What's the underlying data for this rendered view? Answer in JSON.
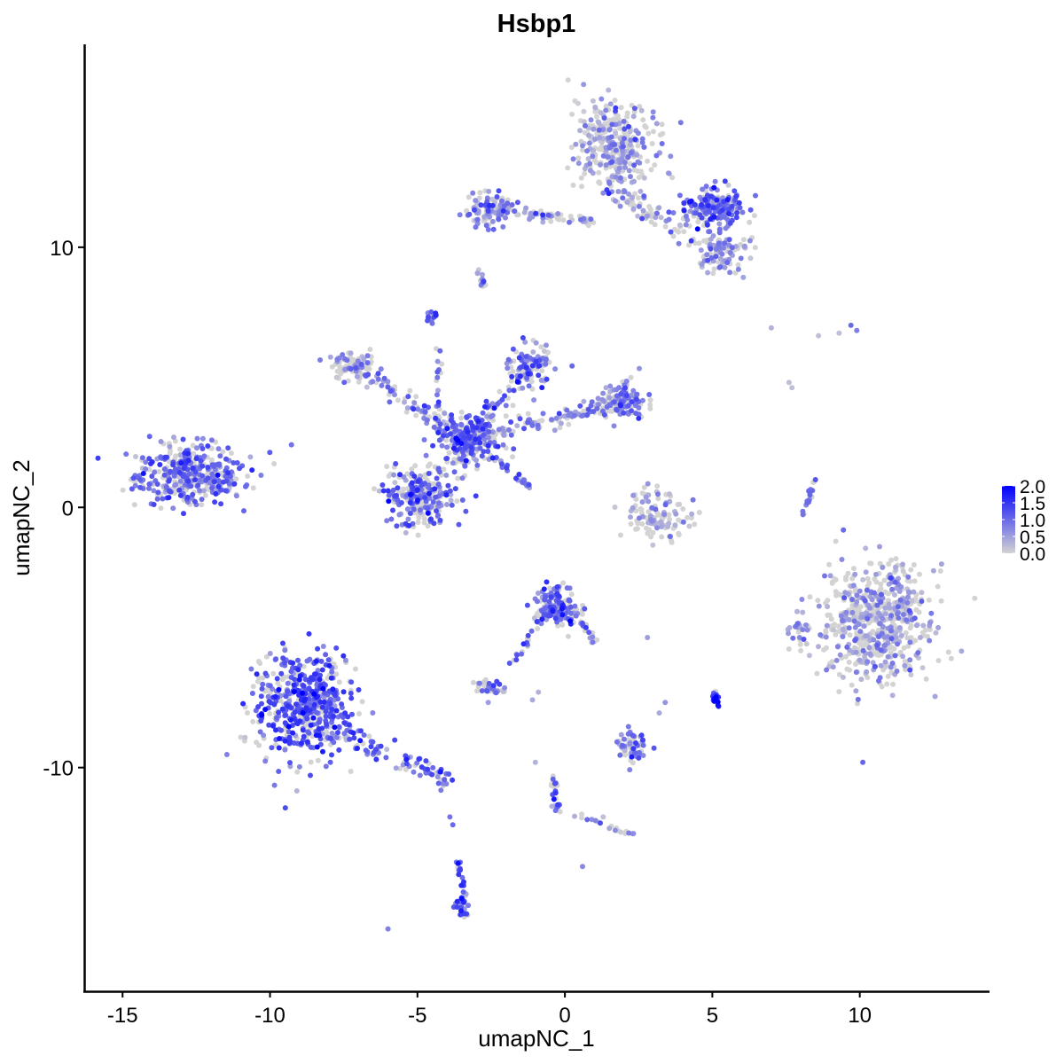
{
  "chart_data": {
    "type": "scatter",
    "title": "Hsbp1",
    "xlabel": "umapNC_1",
    "ylabel": "umapNC_2",
    "xlim": [
      -16.3,
      14.4
    ],
    "ylim": [
      -18.6,
      17.8
    ],
    "xticks": [
      "-15",
      "-10",
      "-5",
      "0",
      "5",
      "10"
    ],
    "xtick_values": [
      -15,
      -10,
      -5,
      0,
      5,
      10
    ],
    "yticks": [
      "-10",
      "0",
      "10"
    ],
    "ytick_values": [
      -10,
      0,
      10
    ],
    "grid": false,
    "legend": {
      "placement": "right",
      "type": "colorbar",
      "labels": [
        "2.0",
        "1.5",
        "1.0",
        "0.5",
        "0.0"
      ],
      "range": [
        0,
        2.0
      ],
      "low_color": "#D3D3D3",
      "high_color": "#0000FF"
    },
    "clusters": [
      {
        "center": [
          -12.7,
          1.2
        ],
        "spread": [
          1.2,
          0.8
        ],
        "n": 380,
        "expr": 0.95
      },
      {
        "center": [
          -8.8,
          -7.6
        ],
        "spread": [
          1.1,
          1.4
        ],
        "n": 520,
        "expr": 1.15
      },
      {
        "center": [
          -4.9,
          0.4
        ],
        "spread": [
          0.8,
          0.8
        ],
        "n": 260,
        "expr": 1.0
      },
      {
        "center": [
          -3.3,
          2.6
        ],
        "spread": [
          0.7,
          0.7
        ],
        "n": 200,
        "expr": 1.05
      },
      {
        "center": [
          -1.1,
          5.4
        ],
        "spread": [
          0.5,
          0.6
        ],
        "n": 90,
        "expr": 0.8
      },
      {
        "center": [
          2.0,
          4.1
        ],
        "spread": [
          0.5,
          0.5
        ],
        "n": 110,
        "expr": 0.9
      },
      {
        "center": [
          -7.2,
          5.4
        ],
        "spread": [
          0.5,
          0.4
        ],
        "n": 80,
        "expr": 0.6
      },
      {
        "center": [
          -4.5,
          7.3
        ],
        "spread": [
          0.15,
          0.15
        ],
        "n": 20,
        "expr": 1.1
      },
      {
        "center": [
          1.7,
          13.8
        ],
        "spread": [
          0.9,
          1.1
        ],
        "n": 330,
        "expr": 0.55
      },
      {
        "center": [
          5.0,
          11.5
        ],
        "spread": [
          0.7,
          0.5
        ],
        "n": 200,
        "expr": 1.0
      },
      {
        "center": [
          5.3,
          9.8
        ],
        "spread": [
          0.6,
          0.5
        ],
        "n": 100,
        "expr": 0.6
      },
      {
        "center": [
          -2.6,
          11.5
        ],
        "spread": [
          0.5,
          0.5
        ],
        "n": 90,
        "expr": 0.8
      },
      {
        "center": [
          3.2,
          -0.3
        ],
        "spread": [
          0.8,
          0.6
        ],
        "n": 110,
        "expr": 0.5
      },
      {
        "center": [
          10.6,
          -4.4
        ],
        "spread": [
          1.15,
          1.5
        ],
        "n": 620,
        "expr": 0.45
      },
      {
        "center": [
          8.0,
          -4.8
        ],
        "spread": [
          0.25,
          0.5
        ],
        "n": 25,
        "expr": 0.6
      },
      {
        "center": [
          -0.3,
          -3.8
        ],
        "spread": [
          0.5,
          0.5
        ],
        "n": 150,
        "expr": 1.0
      },
      {
        "center": [
          -2.6,
          -6.9
        ],
        "spread": [
          0.3,
          0.2
        ],
        "n": 35,
        "expr": 0.9
      },
      {
        "center": [
          2.3,
          -9.2
        ],
        "spread": [
          0.4,
          0.4
        ],
        "n": 60,
        "expr": 0.85
      },
      {
        "center": [
          5.1,
          -7.3
        ],
        "spread": [
          0.1,
          0.2
        ],
        "n": 15,
        "expr": 1.6
      },
      {
        "center": [
          -3.5,
          -15.3
        ],
        "spread": [
          0.2,
          0.4
        ],
        "n": 30,
        "expr": 1.1
      }
    ],
    "arms": [
      {
        "from": [
          -8.0,
          -8.5
        ],
        "to": [
          -3.8,
          -10.5
        ],
        "n": 90,
        "width": 0.4,
        "expr": 1.0
      },
      {
        "from": [
          -3.3,
          2.6
        ],
        "to": [
          -7.2,
          5.4
        ],
        "n": 90,
        "width": 0.35,
        "expr": 0.8
      },
      {
        "from": [
          -3.3,
          2.6
        ],
        "to": [
          -1.1,
          5.6
        ],
        "n": 70,
        "width": 0.35,
        "expr": 1.0
      },
      {
        "from": [
          -3.3,
          2.6
        ],
        "to": [
          2.0,
          4.1
        ],
        "n": 140,
        "width": 0.35,
        "expr": 0.7
      },
      {
        "from": [
          -2.5,
          2.0
        ],
        "to": [
          -1.2,
          0.8
        ],
        "n": 40,
        "width": 0.1,
        "expr": 0.8
      },
      {
        "from": [
          -4.3,
          2.6
        ],
        "to": [
          -4.3,
          6.8
        ],
        "n": 20,
        "width": 0.1,
        "expr": 0.9
      },
      {
        "from": [
          -2.6,
          11.5
        ],
        "to": [
          0.9,
          11.0
        ],
        "n": 80,
        "width": 0.2,
        "expr": 0.7
      },
      {
        "from": [
          1.5,
          12.2
        ],
        "to": [
          4.0,
          10.6
        ],
        "n": 60,
        "width": 0.35,
        "expr": 0.6
      },
      {
        "from": [
          8.1,
          -0.3
        ],
        "to": [
          8.5,
          1.1
        ],
        "n": 20,
        "width": 0.1,
        "expr": 0.8
      },
      {
        "from": [
          -1.8,
          -6.0
        ],
        "to": [
          -0.8,
          -4.3
        ],
        "n": 20,
        "width": 0.15,
        "expr": 1.0
      },
      {
        "from": [
          0.3,
          -4.0
        ],
        "to": [
          1.2,
          -5.4
        ],
        "n": 20,
        "width": 0.15,
        "expr": 1.0
      },
      {
        "from": [
          -0.4,
          -10.4
        ],
        "to": [
          -0.2,
          -12.0
        ],
        "n": 25,
        "width": 0.15,
        "expr": 0.9
      },
      {
        "from": [
          0.3,
          -11.8
        ],
        "to": [
          2.4,
          -12.6
        ],
        "n": 20,
        "width": 0.1,
        "expr": 0.7
      },
      {
        "from": [
          -3.6,
          -13.6
        ],
        "to": [
          -3.3,
          -15.6
        ],
        "n": 20,
        "width": 0.12,
        "expr": 1.0
      },
      {
        "from": [
          -2.9,
          9.2
        ],
        "to": [
          -2.8,
          8.5
        ],
        "n": 12,
        "width": 0.1,
        "expr": 0.6
      }
    ],
    "single_points": [
      [
        4.5,
        10.7,
        2.0
      ],
      [
        7.0,
        6.9,
        0.3
      ],
      [
        8.6,
        6.6,
        0.2
      ],
      [
        9.3,
        6.7,
        0.2
      ],
      [
        9.7,
        7.0,
        1.0
      ],
      [
        9.9,
        6.8,
        0.8
      ],
      [
        7.6,
        4.8,
        0.2
      ],
      [
        7.7,
        4.6,
        0.2
      ],
      [
        2.8,
        -5.0,
        0.5
      ],
      [
        3.4,
        -7.5,
        0.6
      ],
      [
        3.2,
        -7.9,
        0.4
      ],
      [
        -0.9,
        -7.1,
        0.3
      ],
      [
        -1.1,
        -7.4,
        0.4
      ],
      [
        0.6,
        -13.8,
        0.7
      ],
      [
        -6.0,
        -16.2,
        0.8
      ],
      [
        -3.9,
        -11.9,
        0.9
      ],
      [
        -3.8,
        -12.2,
        1.0
      ],
      [
        -1.0,
        -9.8,
        0.3
      ],
      [
        -2.6,
        -7.5,
        0.5
      ],
      [
        1.3,
        -11.9,
        0.2
      ]
    ]
  }
}
